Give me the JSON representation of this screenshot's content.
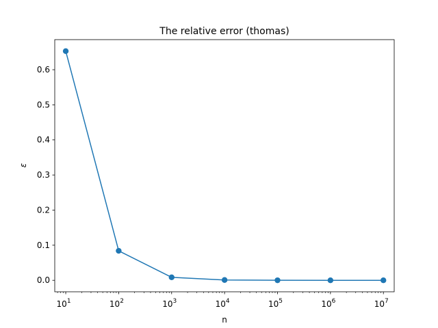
{
  "chart_data": {
    "type": "line",
    "title": "The relative error (thomas)",
    "xlabel": "n",
    "ylabel": "ε",
    "x_scale": "log",
    "xlim": [
      6.2,
      16000000
    ],
    "ylim": [
      -0.0327,
      0.6857
    ],
    "x_ticks": [
      10,
      100,
      1000,
      10000,
      100000,
      1000000,
      10000000
    ],
    "x_tick_labels": [
      {
        "base": "10",
        "exp": "1"
      },
      {
        "base": "10",
        "exp": "2"
      },
      {
        "base": "10",
        "exp": "3"
      },
      {
        "base": "10",
        "exp": "4"
      },
      {
        "base": "10",
        "exp": "5"
      },
      {
        "base": "10",
        "exp": "6"
      },
      {
        "base": "10",
        "exp": "7"
      }
    ],
    "y_ticks": [
      0.0,
      0.1,
      0.2,
      0.3,
      0.4,
      0.5,
      0.6
    ],
    "y_tick_labels": [
      "0.0",
      "0.1",
      "0.2",
      "0.3",
      "0.4",
      "0.5",
      "0.6"
    ],
    "grid": false,
    "series": [
      {
        "color": "#1f77b4",
        "marker": "circle",
        "x": [
          10,
          100,
          1000,
          10000,
          100000,
          1000000,
          10000000
        ],
        "y": [
          0.653,
          0.084,
          0.0085,
          0.0009,
          0.0001,
          1e-05,
          1e-06
        ]
      }
    ]
  }
}
